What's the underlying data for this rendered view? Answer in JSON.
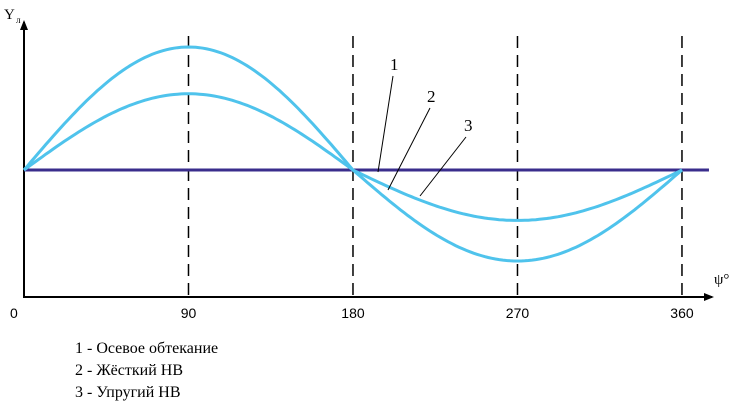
{
  "chart_data": {
    "type": "line",
    "x_axis": {
      "label": "ψ°",
      "range": [
        0,
        360
      ],
      "ticks": [
        "0",
        "90",
        "180",
        "270",
        "360"
      ]
    },
    "y_axis": {
      "label": "Y",
      "label_subscript": "л"
    },
    "colors": {
      "axis_line": "#3a2d8c",
      "curves": "#4fc3ec"
    },
    "series": [
      {
        "number": "1",
        "legend": "1 - Осевое обтекание",
        "x": [
          0,
          360
        ],
        "y": [
          0,
          0
        ]
      },
      {
        "number": "2",
        "legend": "2 - Жёсткий НВ",
        "x": [
          0,
          90,
          180,
          270,
          360
        ],
        "y": [
          0,
          1.0,
          0,
          -0.74,
          0
        ]
      },
      {
        "number": "3",
        "legend": "3 - Упругий НВ",
        "x": [
          0,
          90,
          180,
          270,
          360
        ],
        "y": [
          0,
          0.62,
          0,
          -0.41,
          0
        ]
      }
    ],
    "legend": [
      "1 - Осевое обтекание",
      "2 - Жёсткий НВ",
      "3 - Упругий НВ"
    ]
  }
}
